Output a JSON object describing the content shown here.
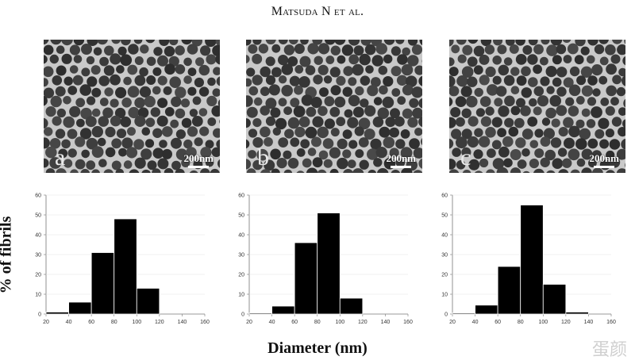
{
  "header": {
    "author": "Matsuda N et al."
  },
  "panels": [
    {
      "letter": "a",
      "scale_label": "200nm"
    },
    {
      "letter": "b",
      "scale_label": "200nm"
    },
    {
      "letter": "c",
      "scale_label": "200nm"
    }
  ],
  "axis": {
    "ylabel": "% of fibrils",
    "xlabel": "Diameter (nm)"
  },
  "watermark": "蛋颜",
  "chart_data": [
    {
      "type": "bar",
      "bin_width": 20,
      "xlim": [
        20,
        160
      ],
      "ylim": [
        0,
        60
      ],
      "xticks": [
        20,
        40,
        60,
        80,
        100,
        120,
        140,
        160
      ],
      "yticks": [
        0,
        10,
        20,
        30,
        40,
        50,
        60
      ],
      "bins": [
        30,
        50,
        70,
        90,
        110,
        130,
        150
      ],
      "values": [
        1,
        6,
        31,
        48,
        13,
        0,
        0
      ]
    },
    {
      "type": "bar",
      "bin_width": 20,
      "xlim": [
        20,
        160
      ],
      "ylim": [
        0,
        60
      ],
      "xticks": [
        20,
        40,
        60,
        80,
        100,
        120,
        140,
        160
      ],
      "yticks": [
        0,
        10,
        20,
        30,
        40,
        50,
        60
      ],
      "bins": [
        30,
        50,
        70,
        90,
        110,
        130,
        150
      ],
      "values": [
        0.5,
        4,
        36,
        51,
        8,
        0,
        0
      ]
    },
    {
      "type": "bar",
      "bin_width": 20,
      "xlim": [
        20,
        160
      ],
      "ylim": [
        0,
        60
      ],
      "xticks": [
        20,
        40,
        60,
        80,
        100,
        120,
        140,
        160
      ],
      "yticks": [
        0,
        10,
        20,
        30,
        40,
        50,
        60
      ],
      "bins": [
        30,
        50,
        70,
        90,
        110,
        130,
        150
      ],
      "values": [
        0.5,
        4.5,
        24,
        55,
        15,
        1,
        0
      ]
    }
  ]
}
